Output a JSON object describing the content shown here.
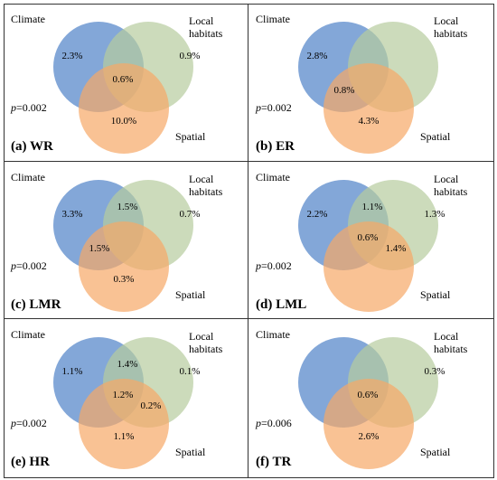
{
  "labels": {
    "climate": "Climate",
    "local_habitats": "Local habitats",
    "spatial": "Spatial"
  },
  "colors": {
    "climate": "#4f81c7",
    "local": "#b7cc9e",
    "spatial": "#f7a867"
  },
  "panels": [
    {
      "id": "a",
      "caption_letter": "(a)",
      "caption_name": "WR",
      "p_prefix": "p",
      "p_value": "=0.002",
      "values": {
        "climate_only": "2.3%",
        "local_only": "0.9%",
        "center": "0.6%",
        "spatial_only": "10.0%"
      }
    },
    {
      "id": "b",
      "caption_letter": "(b)",
      "caption_name": "ER",
      "p_prefix": "p",
      "p_value": "=0.002",
      "values": {
        "climate_only": "2.8%",
        "climate_spatial": "0.8%",
        "spatial_only": "4.3%"
      }
    },
    {
      "id": "c",
      "caption_letter": "(c)",
      "caption_name": "LMR",
      "p_prefix": "p",
      "p_value": "=0.002",
      "values": {
        "climate_only": "3.3%",
        "climate_local": "1.5%",
        "local_only": "0.7%",
        "climate_spatial": "1.5%",
        "spatial_only": "0.3%"
      }
    },
    {
      "id": "d",
      "caption_letter": "(d)",
      "caption_name": "LML",
      "p_prefix": "p",
      "p_value": "=0.002",
      "values": {
        "climate_only": "2.2%",
        "climate_local": "1.1%",
        "local_only": "1.3%",
        "center": "0.6%",
        "local_spatial": "1.4%"
      }
    },
    {
      "id": "e",
      "caption_letter": "(e)",
      "caption_name": "HR",
      "p_prefix": "p",
      "p_value": "=0.002",
      "values": {
        "climate_only": "1.1%",
        "climate_local": "1.4%",
        "local_only": "0.1%",
        "center": "1.2%",
        "local_spatial": "0.2%",
        "spatial_only": "1.1%"
      }
    },
    {
      "id": "f",
      "caption_letter": "(f)",
      "caption_name": "TR",
      "p_prefix": "p",
      "p_value": "=0.006",
      "values": {
        "local_only": "0.3%",
        "center": "0.6%",
        "spatial_only": "2.6%"
      }
    }
  ]
}
